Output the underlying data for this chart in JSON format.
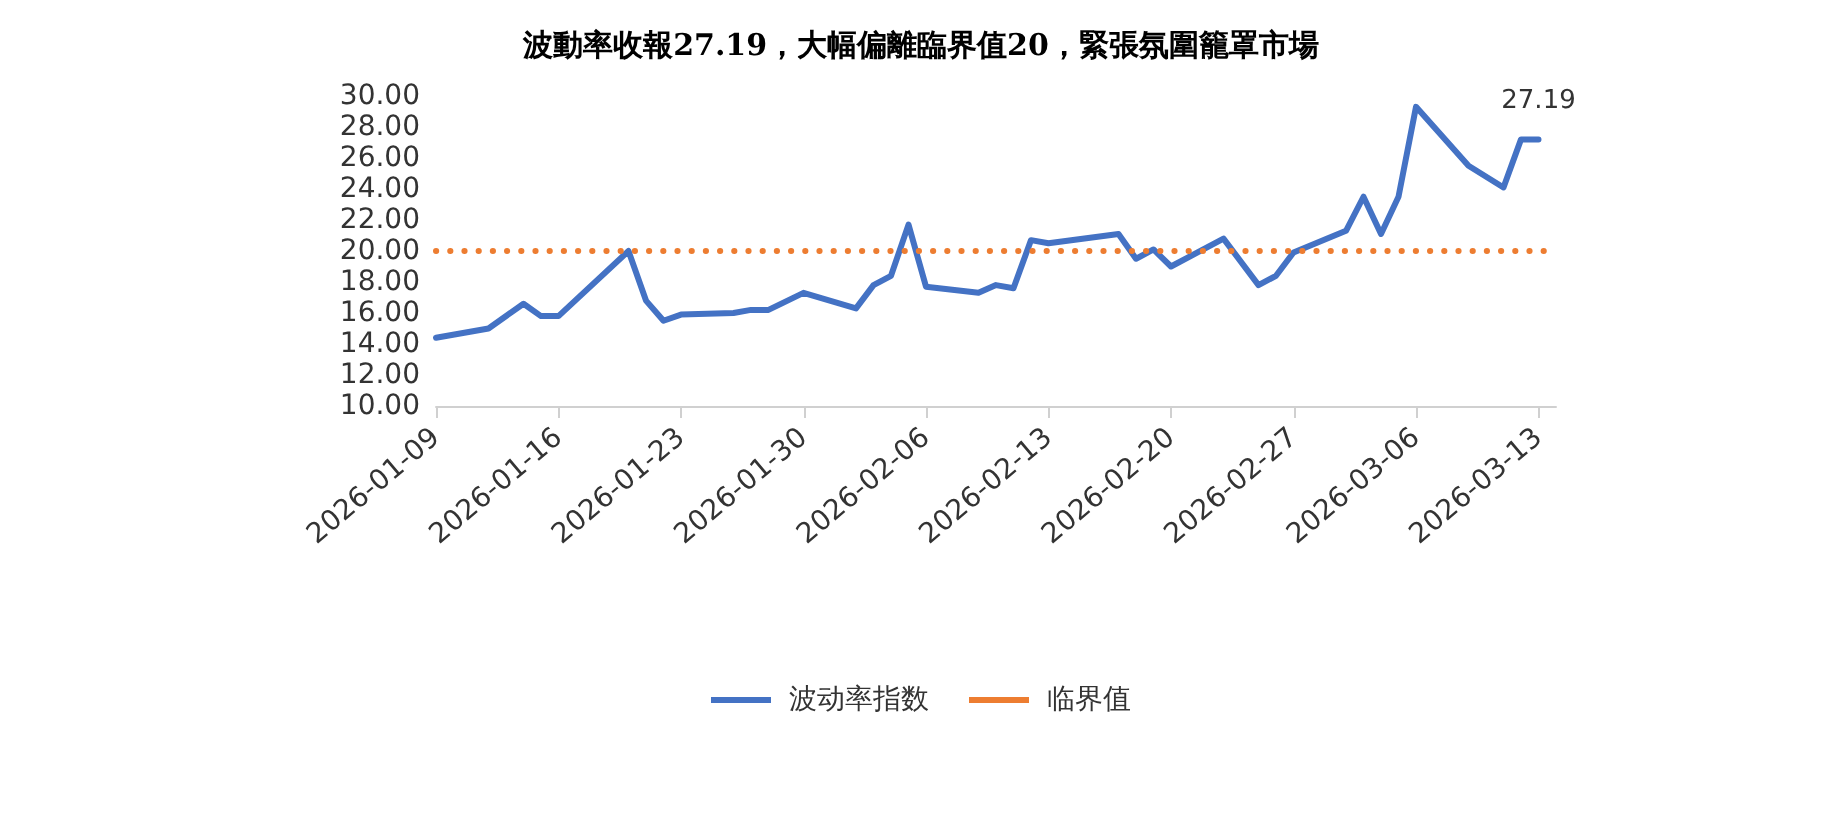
{
  "chart_data": {
    "type": "line",
    "title": "波動率收報27.19，大幅偏離臨界值20，緊張氛圍籠罩市場",
    "x": [
      "2026-01-09",
      "2026-01-12",
      "2026-01-14",
      "2026-01-15",
      "2026-01-16",
      "2026-01-20",
      "2026-01-21",
      "2026-01-22",
      "2026-01-23",
      "2026-01-26",
      "2026-01-27",
      "2026-01-28",
      "2026-01-30",
      "2026-02-02",
      "2026-02-03",
      "2026-02-04",
      "2026-02-05",
      "2026-02-06",
      "2026-02-09",
      "2026-02-10",
      "2026-02-11",
      "2026-02-12",
      "2026-02-13",
      "2026-02-17",
      "2026-02-18",
      "2026-02-19",
      "2026-02-20",
      "2026-02-23",
      "2026-02-25",
      "2026-02-26",
      "2026-02-27",
      "2026-03-02",
      "2026-03-03",
      "2026-03-04",
      "2026-03-05",
      "2026-03-06",
      "2026-03-09",
      "2026-03-11",
      "2026-03-12",
      "2026-03-13"
    ],
    "series": [
      {
        "name": "波动率指数",
        "color": "#4472c4",
        "values": [
          14.4,
          15.0,
          16.6,
          15.8,
          15.8,
          20.0,
          16.8,
          15.5,
          15.9,
          16.0,
          16.2,
          16.2,
          17.3,
          16.3,
          17.8,
          18.4,
          21.7,
          17.7,
          17.3,
          17.8,
          17.6,
          20.7,
          20.5,
          21.1,
          19.5,
          20.1,
          19.0,
          20.8,
          17.8,
          18.4,
          19.9,
          21.3,
          23.5,
          21.1,
          23.5,
          29.3,
          25.5,
          24.1,
          27.2,
          27.19
        ],
        "value_labels": [
          null,
          null,
          null,
          null,
          null,
          null,
          null,
          null,
          null,
          null,
          null,
          null,
          null,
          null,
          null,
          null,
          null,
          null,
          null,
          null,
          null,
          null,
          null,
          null,
          null,
          null,
          null,
          null,
          null,
          null,
          null,
          null,
          null,
          null,
          null,
          null,
          null,
          null,
          null,
          "27.19"
        ]
      }
    ],
    "ref_lines": [
      {
        "axis": "y",
        "value": 20,
        "label": "临界值",
        "color": "#ed7d31",
        "line_style": "dotted"
      }
    ],
    "xlim": [
      "2026-01-09",
      "2026-03-14"
    ],
    "xticks": [
      "2026-01-09",
      "2026-01-16",
      "2026-01-23",
      "2026-01-30",
      "2026-02-06",
      "2026-02-13",
      "2026-02-20",
      "2026-02-27",
      "2026-03-06",
      "2026-03-13"
    ],
    "ylim": [
      10,
      30
    ],
    "yticks": [
      {
        "value": 10,
        "label": "10.00"
      },
      {
        "value": 12,
        "label": "12.00"
      },
      {
        "value": 14,
        "label": "14.00"
      },
      {
        "value": 16,
        "label": "16.00"
      },
      {
        "value": 18,
        "label": "18.00"
      },
      {
        "value": 20,
        "label": "20.00"
      },
      {
        "value": 22,
        "label": "22.00"
      },
      {
        "value": 24,
        "label": "24.00"
      },
      {
        "value": 26,
        "label": "26.00"
      },
      {
        "value": 28,
        "label": "28.00"
      },
      {
        "value": 30,
        "label": "30.00"
      }
    ],
    "grid": false,
    "legend": "bottom",
    "marker": "none",
    "line_style": "solid"
  }
}
